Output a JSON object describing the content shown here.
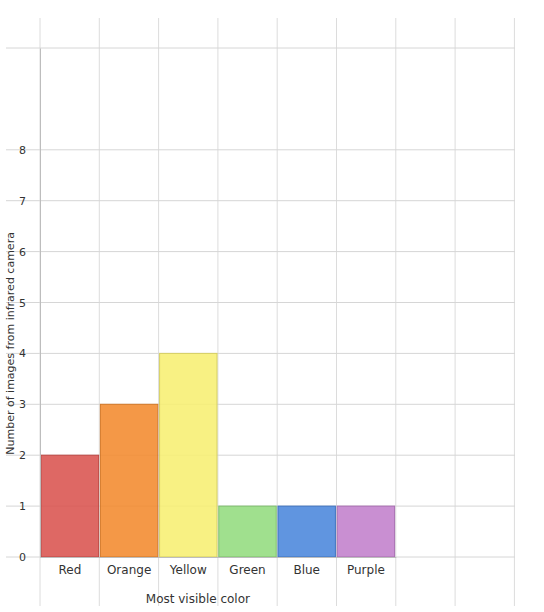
{
  "chart_data": {
    "type": "bar",
    "x_label": "Most visible color",
    "y_label": "Number of images from infrared camera",
    "categories": [
      "Red",
      "Orange",
      "Yellow",
      "Green",
      "Blue",
      "Purple"
    ],
    "values": [
      2,
      3,
      4,
      1,
      1,
      1
    ],
    "colors": [
      "#d9534f",
      "#f28a2e",
      "#f7ef72",
      "#93dc7e",
      "#4a86dc",
      "#c27fcc"
    ],
    "ylim": [
      0,
      10
    ],
    "yticks": [
      0,
      1,
      2,
      3,
      4,
      5,
      6,
      7,
      8
    ],
    "grid": true
  }
}
